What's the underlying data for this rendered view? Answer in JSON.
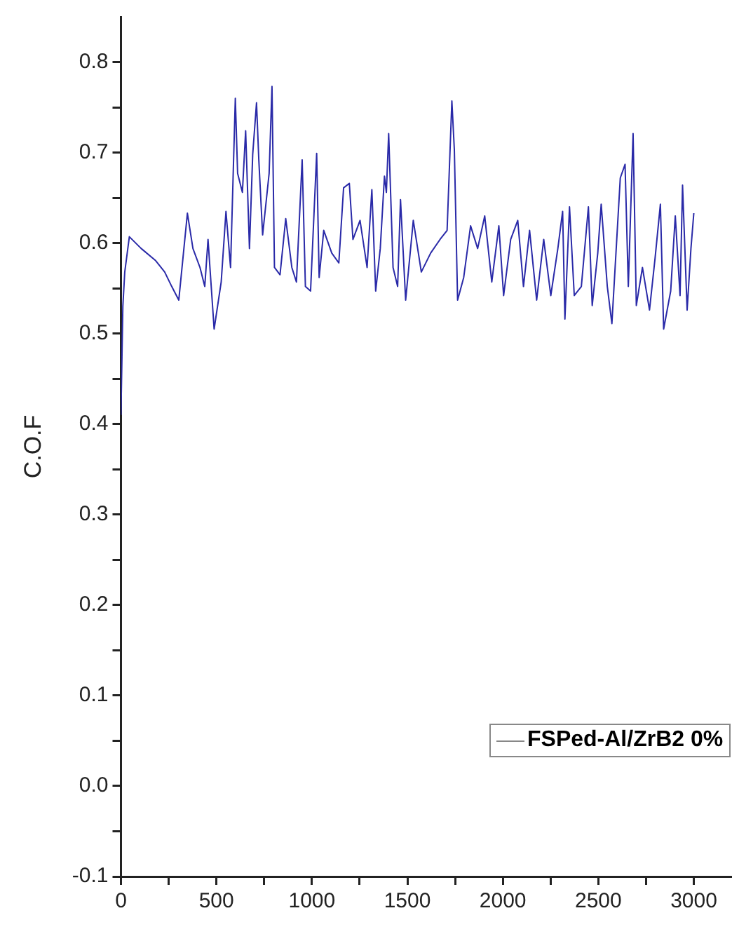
{
  "chart_data": {
    "type": "line",
    "ylabel": "C.O.F",
    "legend": "bottom right",
    "grid": false,
    "marker": "none",
    "line_style": "solid",
    "xlim": [
      0,
      3200
    ],
    "ylim": [
      -0.1,
      0.85
    ],
    "xticks": [
      0,
      {
        "value": 250,
        "label": null
      },
      500,
      {
        "value": 750,
        "label": null
      },
      1000,
      {
        "value": 1250,
        "label": null
      },
      1500,
      {
        "value": 1750,
        "label": null
      },
      2000,
      {
        "value": 2250,
        "label": null
      },
      2500,
      {
        "value": 2750,
        "label": null
      },
      3000
    ],
    "yticks": [
      -0.1,
      {
        "value": -0.05,
        "label": null
      },
      {
        "value": 0,
        "label": "0.0"
      },
      {
        "value": 0.05,
        "label": null
      },
      0.1,
      {
        "value": 0.15,
        "label": null
      },
      0.2,
      {
        "value": 0.25,
        "label": null
      },
      0.3,
      {
        "value": 0.35,
        "label": null
      },
      0.4,
      {
        "value": 0.45,
        "label": null
      },
      0.5,
      {
        "value": 0.55,
        "label": null
      },
      0.6,
      {
        "value": 0.65,
        "label": null
      },
      0.7,
      {
        "value": 0.75,
        "label": null
      },
      0.8
    ],
    "series": [
      {
        "name": "FSPed-Al/ZrB2 0%",
        "color": "#2a2aa8",
        "x": [
          0,
          10,
          20,
          44,
          106,
          180,
          229,
          266,
          303,
          348,
          377,
          414,
          439,
          456,
          488,
          525,
          550,
          574,
          599,
          611,
          636,
          653,
          673,
          690,
          710,
          722,
          742,
          776,
          791,
          804,
          833,
          863,
          895,
          919,
          949,
          966,
          993,
          1025,
          1038,
          1062,
          1104,
          1141,
          1166,
          1196,
          1215,
          1252,
          1289,
          1314,
          1334,
          1358,
          1380,
          1390,
          1402,
          1425,
          1449,
          1464,
          1491,
          1531,
          1573,
          1622,
          1671,
          1708,
          1733,
          1746,
          1763,
          1795,
          1831,
          1868,
          1905,
          1942,
          1979,
          2004,
          2041,
          2078,
          2108,
          2140,
          2177,
          2214,
          2251,
          2288,
          2313,
          2325,
          2349,
          2374,
          2411,
          2448,
          2468,
          2497,
          2515,
          2547,
          2571,
          2615,
          2640,
          2657,
          2682,
          2699,
          2731,
          2768,
          2797,
          2825,
          2842,
          2879,
          2903,
          2928,
          2941,
          2965,
          2985,
          3000
        ],
        "values": [
          0.41,
          0.53,
          0.568,
          0.607,
          0.594,
          0.581,
          0.568,
          0.552,
          0.537,
          0.633,
          0.594,
          0.573,
          0.552,
          0.604,
          0.505,
          0.557,
          0.635,
          0.573,
          0.76,
          0.677,
          0.656,
          0.724,
          0.594,
          0.698,
          0.755,
          0.692,
          0.609,
          0.677,
          0.773,
          0.573,
          0.565,
          0.627,
          0.573,
          0.557,
          0.692,
          0.552,
          0.547,
          0.699,
          0.562,
          0.614,
          0.589,
          0.578,
          0.661,
          0.666,
          0.604,
          0.625,
          0.573,
          0.659,
          0.547,
          0.594,
          0.674,
          0.656,
          0.721,
          0.573,
          0.552,
          0.648,
          0.537,
          0.625,
          0.568,
          0.589,
          0.604,
          0.614,
          0.757,
          0.703,
          0.537,
          0.562,
          0.619,
          0.594,
          0.63,
          0.557,
          0.619,
          0.542,
          0.604,
          0.625,
          0.552,
          0.614,
          0.537,
          0.604,
          0.542,
          0.594,
          0.635,
          0.516,
          0.64,
          0.542,
          0.552,
          0.64,
          0.531,
          0.589,
          0.643,
          0.552,
          0.511,
          0.672,
          0.687,
          0.552,
          0.721,
          0.531,
          0.573,
          0.526,
          0.583,
          0.643,
          0.505,
          0.547,
          0.63,
          0.542,
          0.664,
          0.526,
          0.594,
          0.633
        ]
      }
    ]
  }
}
